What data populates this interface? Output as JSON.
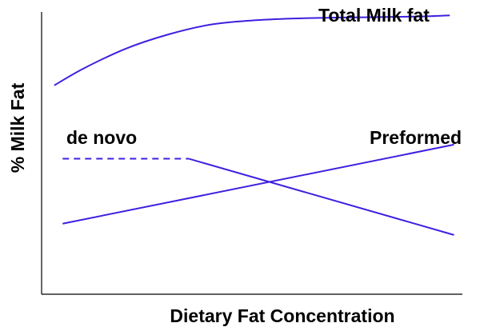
{
  "chart_data": {
    "type": "line",
    "xlabel": "Dietary Fat Concentration",
    "ylabel": "% Milk Fat",
    "xlim": [
      0,
      100
    ],
    "ylim": [
      0,
      100
    ],
    "x_ticks": false,
    "y_ticks": false,
    "grid": false,
    "legend": "none",
    "line_color": "#3f1fe0",
    "series": [
      {
        "name": "Total Milk fat",
        "style": "solid",
        "x": [
          3,
          10,
          20,
          30,
          40,
          50,
          60,
          70,
          80,
          90,
          97
        ],
        "y": [
          74,
          80,
          87,
          92,
          95.5,
          97,
          97.7,
          98,
          98.2,
          98.4,
          98.8
        ]
      },
      {
        "name": "de novo",
        "style": "dashed-then-solid",
        "dashed_until_x": 35,
        "x": [
          5,
          35,
          98
        ],
        "y": [
          48,
          48,
          21
        ]
      },
      {
        "name": "Preformed",
        "style": "solid",
        "x": [
          5,
          98
        ],
        "y": [
          25,
          53
        ]
      }
    ]
  }
}
